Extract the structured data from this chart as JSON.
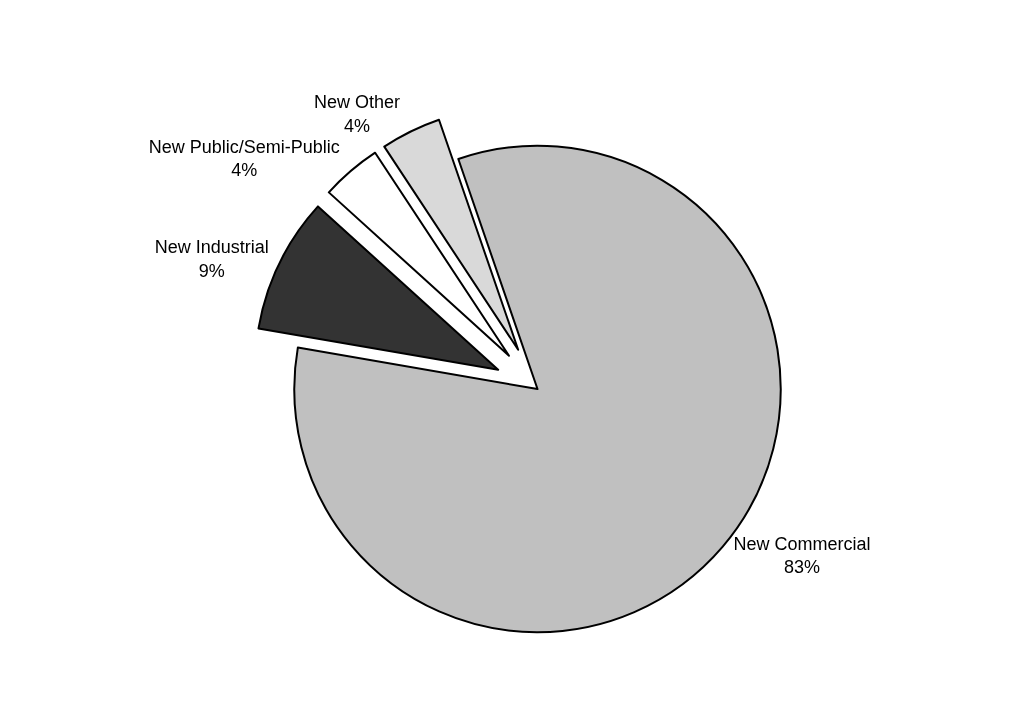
{
  "chart_data": {
    "type": "pie",
    "categories": [
      "New Commercial",
      "New Industrial",
      "New Public/Semi-Public",
      "New Other"
    ],
    "values": [
      83,
      9,
      4,
      4
    ],
    "value_labels": [
      "83%",
      "9%",
      "4%",
      "4%"
    ],
    "colors": [
      "#c0c0c0",
      "#333333",
      "#ffffff",
      "#d9d9d9"
    ],
    "legend": false
  }
}
